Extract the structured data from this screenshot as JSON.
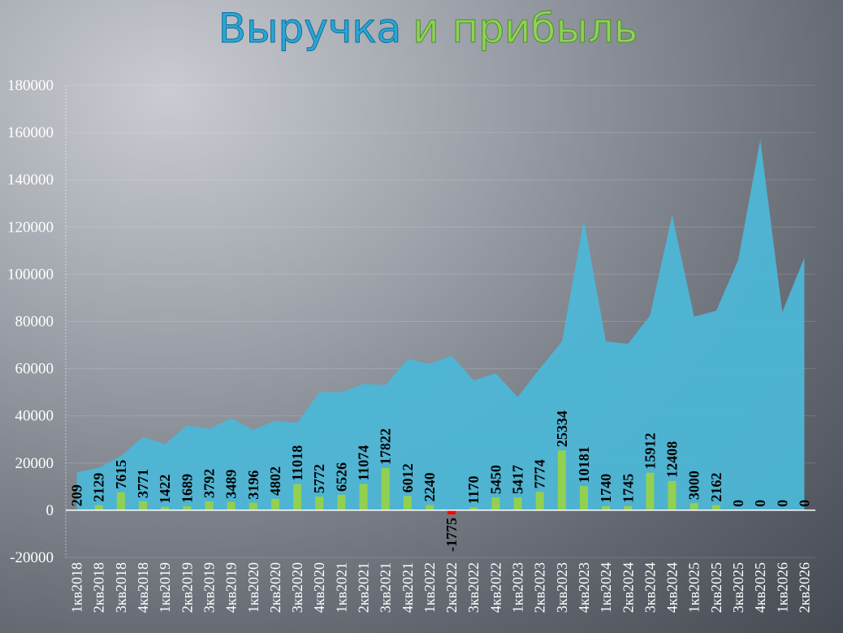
{
  "chart_data": {
    "type": "combo",
    "title": [
      "Выручка",
      "и прибыль"
    ],
    "categories": [
      "1кв2018",
      "2кв2018",
      "3кв2018",
      "4кв2018",
      "1кв2019",
      "2кв2019",
      "3кв2019",
      "4кв2019",
      "1кв2020",
      "2кв2020",
      "3кв2020",
      "4кв2020",
      "1кв2021",
      "2кв2021",
      "3кв2021",
      "4кв2021",
      "1кв2022",
      "2кв2022",
      "3кв2022",
      "4кв2022",
      "1кв2023",
      "2кв2023",
      "3кв2023",
      "4кв2023",
      "1кв2024",
      "2кв2024",
      "3кв2024",
      "4кв2024",
      "1кв2025",
      "2кв2025",
      "3кв2025",
      "4кв2025",
      "1кв2026",
      "2кв2026"
    ],
    "series": [
      {
        "type": "area",
        "color": "#4db6d6",
        "values": [
          16000,
          18000,
          23000,
          31000,
          28000,
          36000,
          34500,
          39000,
          34000,
          38000,
          37000,
          50000,
          50000,
          53500,
          53000,
          64000,
          62000,
          65500,
          55000,
          58000,
          48000,
          60000,
          71500,
          123000,
          71500,
          70500,
          82500,
          125000,
          82000,
          84500,
          106000,
          157000,
          84000,
          107000
        ]
      },
      {
        "type": "bar",
        "color": "#92d050",
        "negative_color": "#ff0000",
        "values": [
          209,
          2129,
          7615,
          3771,
          1422,
          1689,
          3792,
          3489,
          3196,
          4802,
          11018,
          5772,
          6526,
          11074,
          17822,
          6012,
          2240,
          -1775,
          1170,
          5450,
          5417,
          7774,
          25334,
          10181,
          1740,
          1745,
          15912,
          12408,
          3000,
          2162,
          0,
          0,
          0,
          0
        ]
      }
    ],
    "ylim": [
      -20000,
      180000
    ],
    "yticks": [
      -20000,
      0,
      20000,
      40000,
      60000,
      80000,
      100000,
      120000,
      140000,
      160000,
      180000
    ],
    "grid": true
  }
}
